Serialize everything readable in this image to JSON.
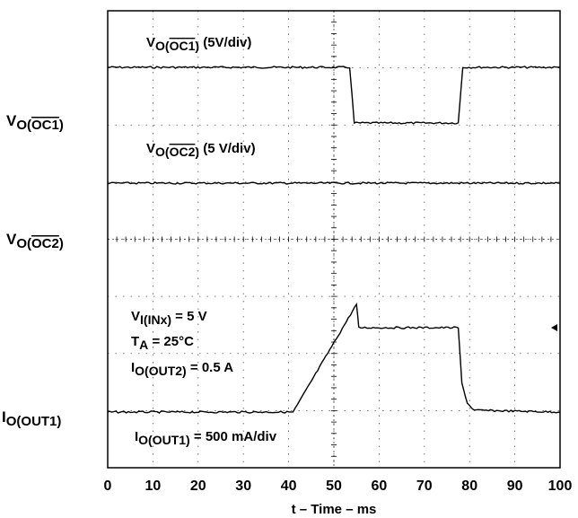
{
  "chart_data": {
    "type": "line",
    "xlabel": "t – Time – ms",
    "xlim": [
      0,
      100
    ],
    "x_ticks": [
      "0",
      "10",
      "20",
      "30",
      "40",
      "50",
      "60",
      "70",
      "80",
      "90",
      "100"
    ],
    "grid": true,
    "series": [
      {
        "id": "oc1",
        "name": "VO(OC1) (5V/div)",
        "x": [
          0,
          53.5,
          54.5,
          77.5,
          78.5,
          100
        ],
        "y": [
          1,
          1,
          0,
          0,
          1,
          1
        ]
      },
      {
        "id": "oc2",
        "name": "VO(OC2) (5 V/div)",
        "x": [
          0,
          100
        ],
        "y": [
          0,
          0
        ]
      },
      {
        "id": "iout1",
        "name": "IO(OUT1) = 500 mA/div",
        "x": [
          0,
          41,
          55,
          55.5,
          77.5,
          78.3,
          79.5,
          81,
          100
        ],
        "y": [
          0,
          0,
          3.0,
          2.35,
          2.35,
          0.8,
          0.25,
          0.05,
          0
        ]
      }
    ],
    "channel_labels": [
      {
        "main": "V",
        "sub": "O(",
        "bar": "OC1",
        "end": ")",
        "scale": " (5V/div)"
      },
      {
        "main": "V",
        "sub": "O(",
        "bar": "OC2",
        "end": ")",
        "scale": " (5 V/div)"
      },
      {
        "main": "I",
        "sub": "O(OUT1)",
        "scale": " = 500 mA/div"
      }
    ],
    "side_labels": [
      {
        "main": "V",
        "sub": "O(",
        "bar": "OC1",
        "end": ")"
      },
      {
        "main": "V",
        "sub": "O(",
        "bar": "OC2",
        "end": ")"
      },
      {
        "main": "I",
        "sub": "O(OUT1)"
      }
    ],
    "conditions": [
      {
        "main": "V",
        "sub": "I(INx)",
        "rest": " = 5 V"
      },
      {
        "main": "T",
        "sub": "A",
        "rest": " = 25°C"
      },
      {
        "main": "I",
        "sub": "O(OUT2)",
        "rest": " = 0.5 A"
      }
    ]
  }
}
